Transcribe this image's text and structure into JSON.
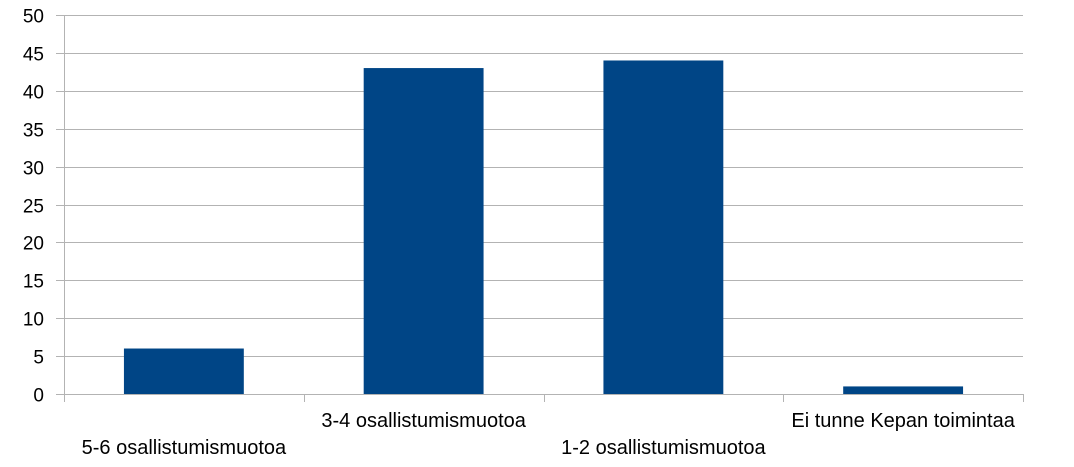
{
  "chart_data": {
    "type": "bar",
    "categories": [
      "5-6 osallistumismuotoa",
      "3-4 osallistumismuotoa",
      "1-2 osallistumismuotoa",
      "Ei tunne Kepan toimintaa"
    ],
    "values": [
      6,
      43,
      44,
      1
    ],
    "ylim": [
      0,
      50
    ],
    "yticks": [
      0,
      5,
      10,
      15,
      20,
      25,
      30,
      35,
      40,
      45,
      50
    ],
    "grid": true,
    "legend": "none"
  },
  "colors": {
    "bar": "#004586",
    "grid": "#b3b3b3",
    "axis": "#b3b3b3"
  }
}
